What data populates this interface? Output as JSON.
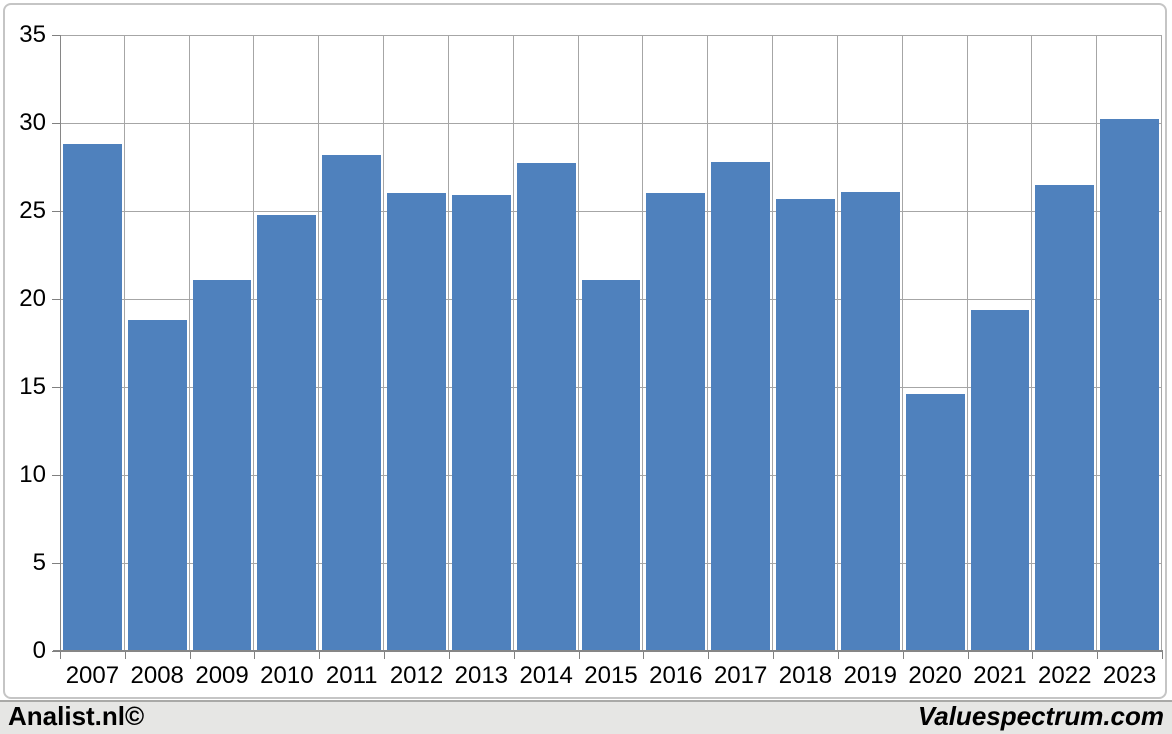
{
  "chart_data": {
    "type": "bar",
    "title": "",
    "categories": [
      "2007",
      "2008",
      "2009",
      "2010",
      "2011",
      "2012",
      "2013",
      "2014",
      "2015",
      "2016",
      "2017",
      "2018",
      "2019",
      "2020",
      "2021",
      "2022",
      "2023"
    ],
    "values": [
      28.8,
      18.8,
      21.1,
      24.8,
      28.2,
      26.0,
      25.9,
      27.7,
      21.1,
      26.0,
      27.8,
      25.7,
      26.1,
      14.6,
      19.4,
      26.5,
      30.2
    ],
    "xlabel": "",
    "ylabel": "",
    "ylim": [
      0,
      35
    ],
    "ytick_step": 5,
    "grid": true,
    "legend": false,
    "bar_color": "#4f81bd"
  },
  "branding": {
    "left": "Analist.nl©",
    "right": "Valuespectrum.com"
  },
  "colors": {
    "bar": "#4f81bd",
    "gridline": "#a6a6a6",
    "axis": "#808080",
    "frame_border": "#c5c5c5",
    "footer_bg": "#e6e6e4",
    "text": "#000000"
  }
}
